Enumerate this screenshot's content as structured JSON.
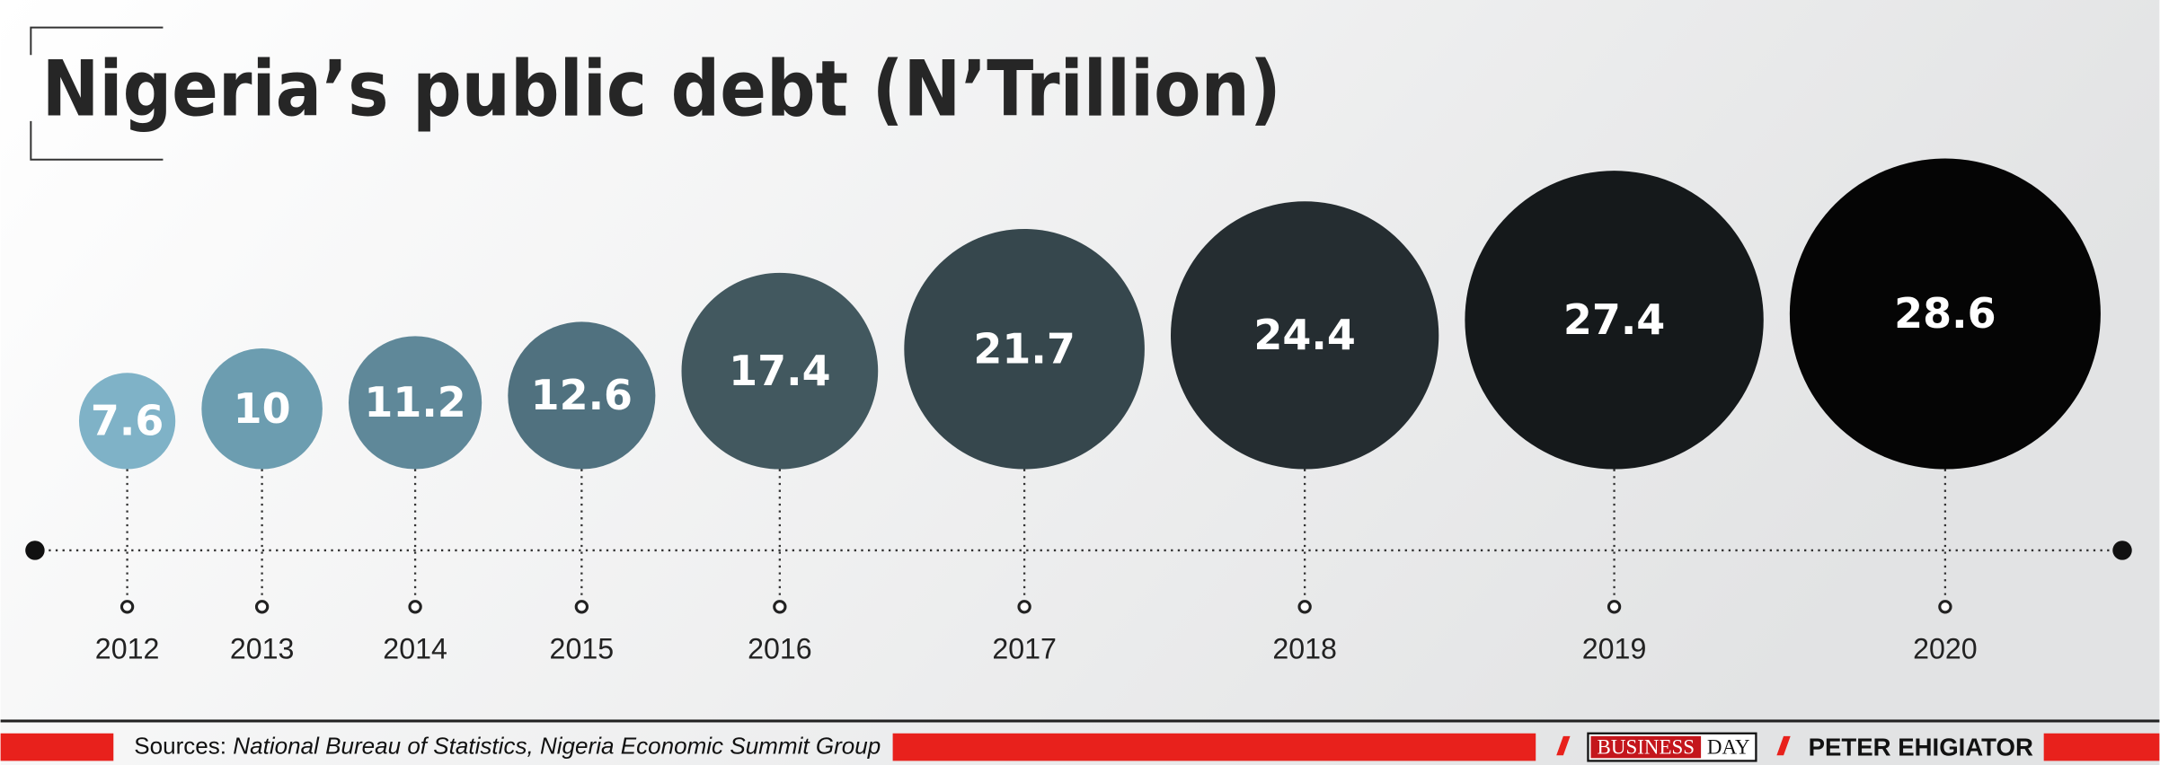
{
  "chart_data": {
    "type": "bubble",
    "title": "Nigeria’s public debt (N’Trillion)",
    "categories": [
      "2012",
      "2013",
      "2014",
      "2015",
      "2016",
      "2017",
      "2018",
      "2019",
      "2020"
    ],
    "values": [
      7.6,
      10,
      11.2,
      12.6,
      17.4,
      21.7,
      24.4,
      27.4,
      28.6
    ],
    "colors": [
      "#7fb2c7",
      "#6c9db0",
      "#5f8899",
      "#50717f",
      "#42585f",
      "#36474d",
      "#252d31",
      "#15191b",
      "#050505"
    ]
  },
  "footer": {
    "sources_label": "Sources:",
    "sources": "National Bureau of Statistics, Nigeria Economic Summit Group",
    "brand": [
      "BUSINESS",
      "DAY"
    ],
    "credit": "PETER EHIGIATOR"
  }
}
